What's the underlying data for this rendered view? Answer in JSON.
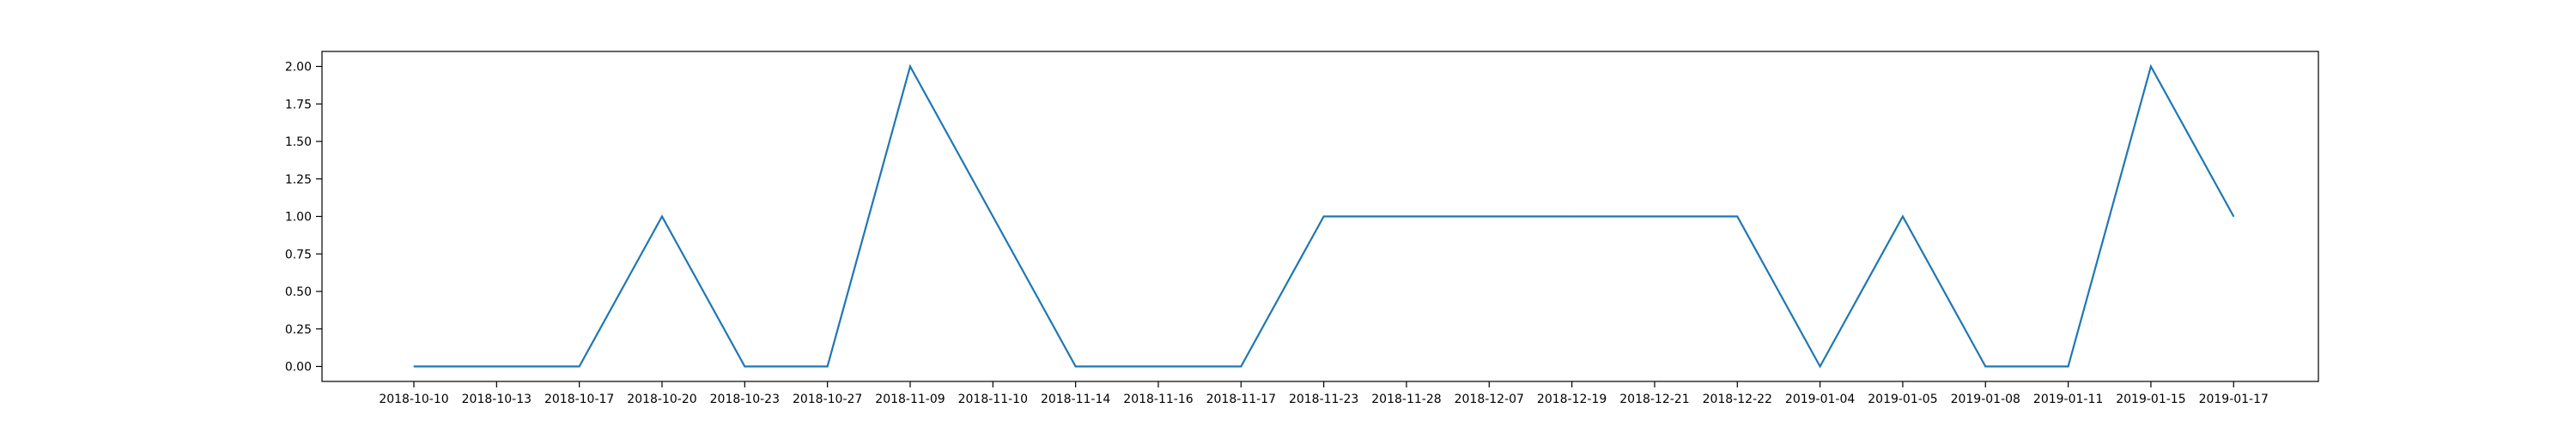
{
  "chart_data": {
    "type": "line",
    "title": "",
    "xlabel": "",
    "ylabel": "",
    "grid": false,
    "x": [
      "2018-10-10",
      "2018-10-13",
      "2018-10-17",
      "2018-10-20",
      "2018-10-23",
      "2018-10-27",
      "2018-11-09",
      "2018-11-10",
      "2018-11-14",
      "2018-11-16",
      "2018-11-17",
      "2018-11-23",
      "2018-11-28",
      "2018-12-07",
      "2018-12-19",
      "2018-12-21",
      "2018-12-22",
      "2019-01-04",
      "2019-01-05",
      "2019-01-08",
      "2019-01-11",
      "2019-01-15",
      "2019-01-17"
    ],
    "series": [
      {
        "color": "#1f77b4",
        "values": [
          0,
          0,
          0,
          1,
          0,
          0,
          2,
          1,
          0,
          0,
          0,
          1,
          1,
          1,
          1,
          1,
          1,
          0,
          1,
          0,
          0,
          2,
          1
        ]
      }
    ],
    "ylim": [
      -0.1,
      2.1
    ],
    "yticks": [
      "0.00",
      "0.25",
      "0.50",
      "0.75",
      "1.00",
      "1.25",
      "1.50",
      "1.75",
      "2.00"
    ]
  }
}
